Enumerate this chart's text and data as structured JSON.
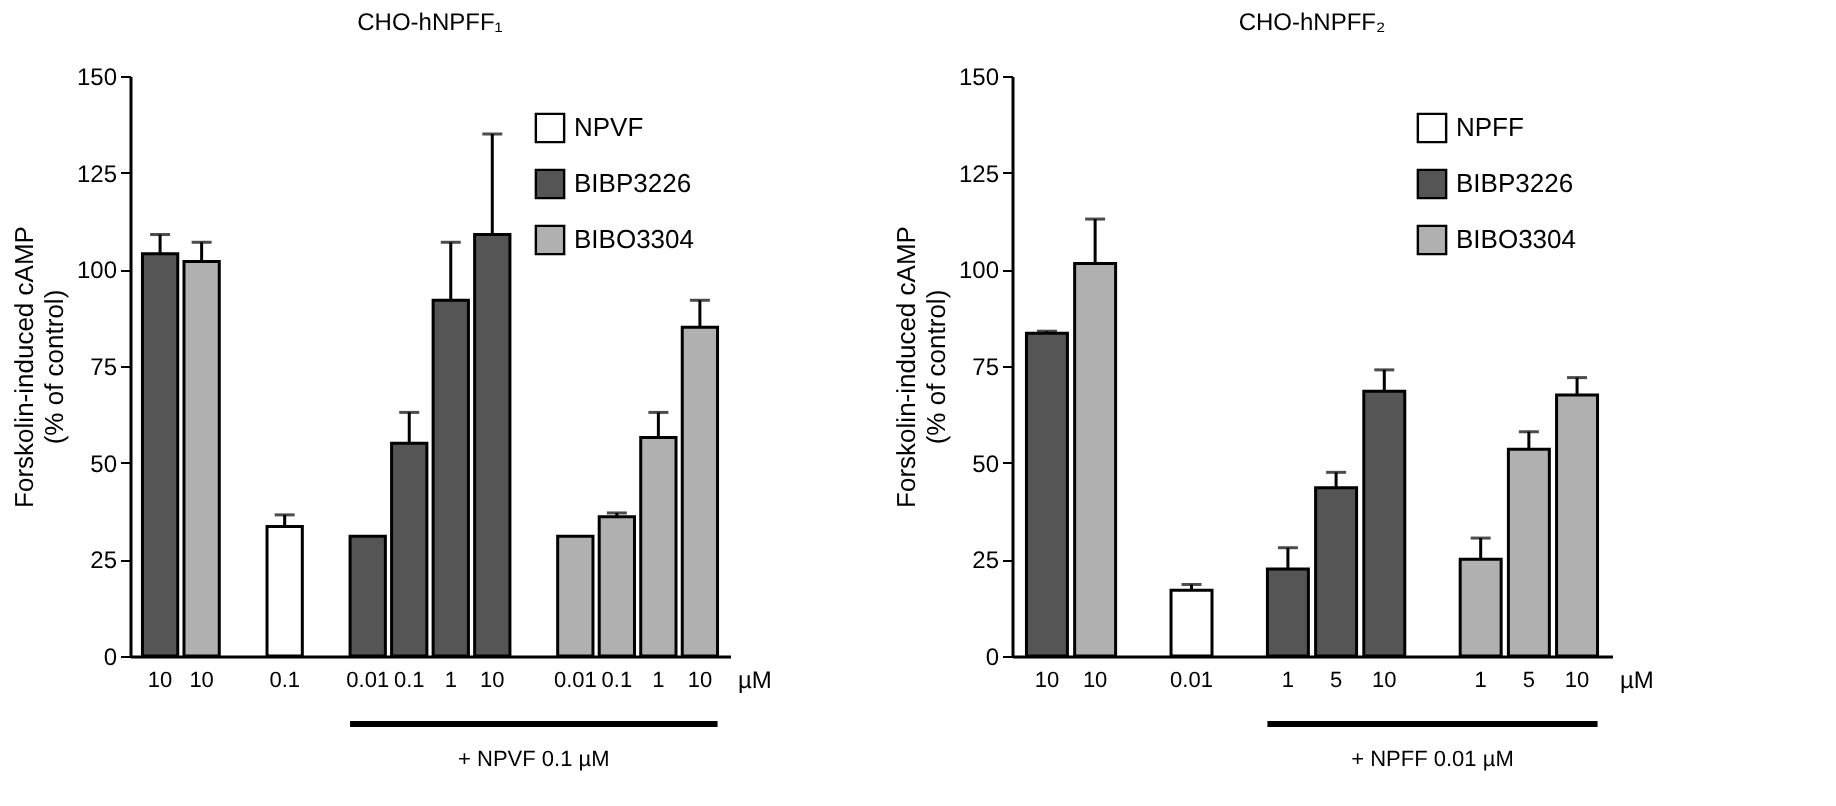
{
  "chart_data": [
    {
      "type": "bar",
      "title": "CHO-hNPFF₁",
      "ylabel": "Forskolin-induced cAMP\n(% of control)",
      "xlabel": "µM",
      "categories": [
        "10",
        "10",
        null,
        "0.1",
        null,
        "0.01",
        "0.1",
        "1",
        "10",
        null,
        "0.01",
        "0.1",
        "1",
        "10"
      ],
      "series": [
        {
          "name": "NPVF",
          "color": "#ffffff",
          "values": [
            null,
            null,
            null,
            33.5,
            null,
            null,
            null,
            null,
            null,
            null,
            null,
            null,
            null,
            null
          ],
          "errors": [
            null,
            null,
            null,
            [
              33.5,
              36.5
            ],
            null,
            null,
            null,
            null,
            null,
            null,
            null,
            null,
            null,
            null
          ]
        },
        {
          "name": "BIBP3226",
          "color": "#555555",
          "values": [
            104,
            null,
            null,
            null,
            null,
            31,
            55,
            92,
            109,
            null,
            null,
            null,
            null,
            null
          ],
          "errors": [
            [
              104,
              109
            ],
            null,
            null,
            null,
            null,
            null,
            [
              55,
              63
            ],
            [
              92,
              107
            ],
            [
              109,
              135
            ],
            null,
            null,
            null,
            null,
            null
          ]
        },
        {
          "name": "BIBO3304",
          "color": "#b0b0b0",
          "values": [
            null,
            102,
            null,
            null,
            null,
            null,
            null,
            null,
            null,
            null,
            31,
            36,
            56.5,
            85
          ],
          "errors": [
            null,
            [
              102,
              107
            ],
            null,
            null,
            null,
            null,
            null,
            null,
            null,
            null,
            null,
            [
              36,
              37
            ],
            [
              56.5,
              63
            ],
            [
              85,
              92
            ]
          ]
        }
      ],
      "ylim": [
        0,
        150
      ],
      "yticks": [
        0,
        25,
        50,
        75,
        100,
        125,
        150
      ],
      "grid": false,
      "legend": "top right",
      "annotations": [
        "+ NPVF  0.1 µM"
      ]
    },
    {
      "type": "bar",
      "title": "CHO-hNPFF₂",
      "ylabel": "Forskolin-induced cAMP\n(% of control)",
      "xlabel": "µM",
      "categories": [
        "10",
        "10",
        null,
        "0.01",
        null,
        "1",
        "5",
        "10",
        null,
        "1",
        "5",
        "10"
      ],
      "series": [
        {
          "name": "NPFF",
          "color": "#ffffff",
          "values": [
            null,
            null,
            null,
            17,
            null,
            null,
            null,
            null,
            null,
            null,
            null,
            null
          ],
          "errors": [
            null,
            null,
            null,
            [
              17,
              18.5
            ],
            null,
            null,
            null,
            null,
            null,
            null,
            null,
            null
          ]
        },
        {
          "name": "BIBP3226",
          "color": "#555555",
          "values": [
            83.5,
            null,
            null,
            null,
            null,
            22.5,
            43.5,
            68.5,
            null,
            null,
            null,
            null
          ],
          "errors": [
            [
              83.5,
              84
            ],
            null,
            null,
            null,
            null,
            [
              22.5,
              28
            ],
            [
              43.5,
              47.5
            ],
            [
              68.5,
              74
            ],
            null,
            null,
            null,
            null
          ]
        },
        {
          "name": "BIBO3304",
          "color": "#b0b0b0",
          "values": [
            null,
            101.5,
            null,
            null,
            null,
            null,
            null,
            null,
            null,
            25,
            53.5,
            67.5
          ],
          "errors": [
            null,
            [
              101.5,
              113
            ],
            null,
            null,
            null,
            null,
            null,
            null,
            null,
            [
              25,
              30.5
            ],
            [
              53.5,
              58
            ],
            [
              67.5,
              72
            ]
          ]
        }
      ],
      "ylim": [
        0,
        150
      ],
      "yticks": [
        0,
        25,
        50,
        75,
        100,
        125,
        150
      ],
      "grid": false,
      "legend": "top right",
      "annotations": [
        "+ NPFF 0.01 µM"
      ]
    }
  ]
}
